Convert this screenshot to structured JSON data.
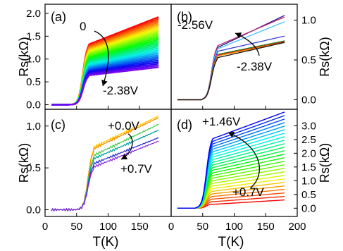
{
  "figure": {
    "shared_xlabel": "T(K)"
  },
  "chart_data": [
    {
      "panel": "(a)",
      "type": "line",
      "ylabel": "Rs(kΩ)",
      "xlim": [
        0,
        200
      ],
      "ylim": [
        -0.1,
        2.2
      ],
      "yticks": [
        "0.0",
        "0.5",
        "1.0",
        "1.5",
        "2.0"
      ],
      "xticks": [],
      "annotations": [
        "0",
        "-2.38V"
      ],
      "family": {
        "count": 30,
        "transition_K": 60,
        "onset_K": 38,
        "first": {
          "label": "0",
          "color": "#ff0000",
          "r_plateau": 1.38,
          "r_end": 1.92
        },
        "last": {
          "label": "-2.38V",
          "color": "#6a1bd6",
          "r_plateau": 0.66,
          "r_end": 0.82
        },
        "color_scheme": "rainbow red→orange→yellow→green→blue→purple"
      }
    },
    {
      "panel": "(b)",
      "type": "line",
      "ylabel": "Rs(kΩ)",
      "xlim": [
        0,
        200
      ],
      "ylim": [
        -0.12,
        1.2
      ],
      "yticks": [
        "0.0",
        "0.5",
        "1.0"
      ],
      "xticks": [],
      "annotations": [
        "-2.56V",
        "-2.38V"
      ],
      "series": [
        {
          "color": "#1f1f8f",
          "r_plateau": 0.68,
          "r_end": 1.06
        },
        {
          "color": "#c0206f",
          "r_plateau": 0.7,
          "r_end": 1.04
        },
        {
          "color": "#3fbfff",
          "r_plateau": 0.66,
          "r_end": 0.98
        },
        {
          "color": "#3a3ad6",
          "r_plateau": 0.62,
          "r_end": 0.8
        },
        {
          "color": "#1a8a1a",
          "r_plateau": 0.58,
          "r_end": 0.74
        },
        {
          "color": "#d61a1a",
          "r_plateau": 0.57,
          "r_end": 0.73
        },
        {
          "color": "#ff9900",
          "r_plateau": 0.56,
          "r_end": 0.72
        },
        {
          "color": "#111111",
          "r_plateau": 0.54,
          "r_end": 0.72
        }
      ],
      "transition_K": 64,
      "onset_K": 50
    },
    {
      "panel": "(c)",
      "type": "line",
      "ylabel": "Rs(kΩ)",
      "xlim": [
        0,
        200
      ],
      "ylim": [
        -0.08,
        1.2
      ],
      "yticks": [
        "0.0",
        "0.5",
        "1.0"
      ],
      "xticks": [
        "0",
        "50",
        "100",
        "150"
      ],
      "annotations": [
        "+0.0V",
        "+0.7V"
      ],
      "series": [
        {
          "color": "#ffcc00",
          "r_plateau": 0.76,
          "r_end": 1.12
        },
        {
          "color": "#ff8c00",
          "r_plateau": 0.74,
          "r_end": 1.1
        },
        {
          "color": "#44cc44",
          "r_plateau": 0.66,
          "r_end": 1.02
        },
        {
          "color": "#00a0a0",
          "r_plateau": 0.62,
          "r_end": 0.95
        },
        {
          "color": "#2e2ed6",
          "r_plateau": 0.56,
          "r_end": 0.86
        },
        {
          "color": "#8a2be2",
          "r_plateau": 0.52,
          "r_end": 0.82
        }
      ],
      "transition_K": 68,
      "onset_K": 50
    },
    {
      "panel": "(d)",
      "type": "line",
      "ylabel": "Rs(kΩ)",
      "xlim": [
        0,
        200
      ],
      "ylim": [
        -0.3,
        3.6
      ],
      "yticks": [
        "0.0",
        "0.5",
        "1.0",
        "1.5",
        "2.0",
        "2.5",
        "3.0"
      ],
      "xticks": [
        "0",
        "50",
        "100",
        "150",
        "200"
      ],
      "annotations": [
        "+1.46V",
        "+0.7V"
      ],
      "family": {
        "count": 26,
        "transition_K": 56,
        "onset_K": 40,
        "first": {
          "label": "+0.7V",
          "color": "#ff0000",
          "r_plateau": 0.16,
          "r_end": 0.3
        },
        "last": {
          "label": "+1.46V",
          "color": "#2222ff",
          "r_plateau": 2.65,
          "r_end": 3.5
        },
        "color_scheme": "rainbow red→orange→yellow→green→blue"
      }
    }
  ]
}
